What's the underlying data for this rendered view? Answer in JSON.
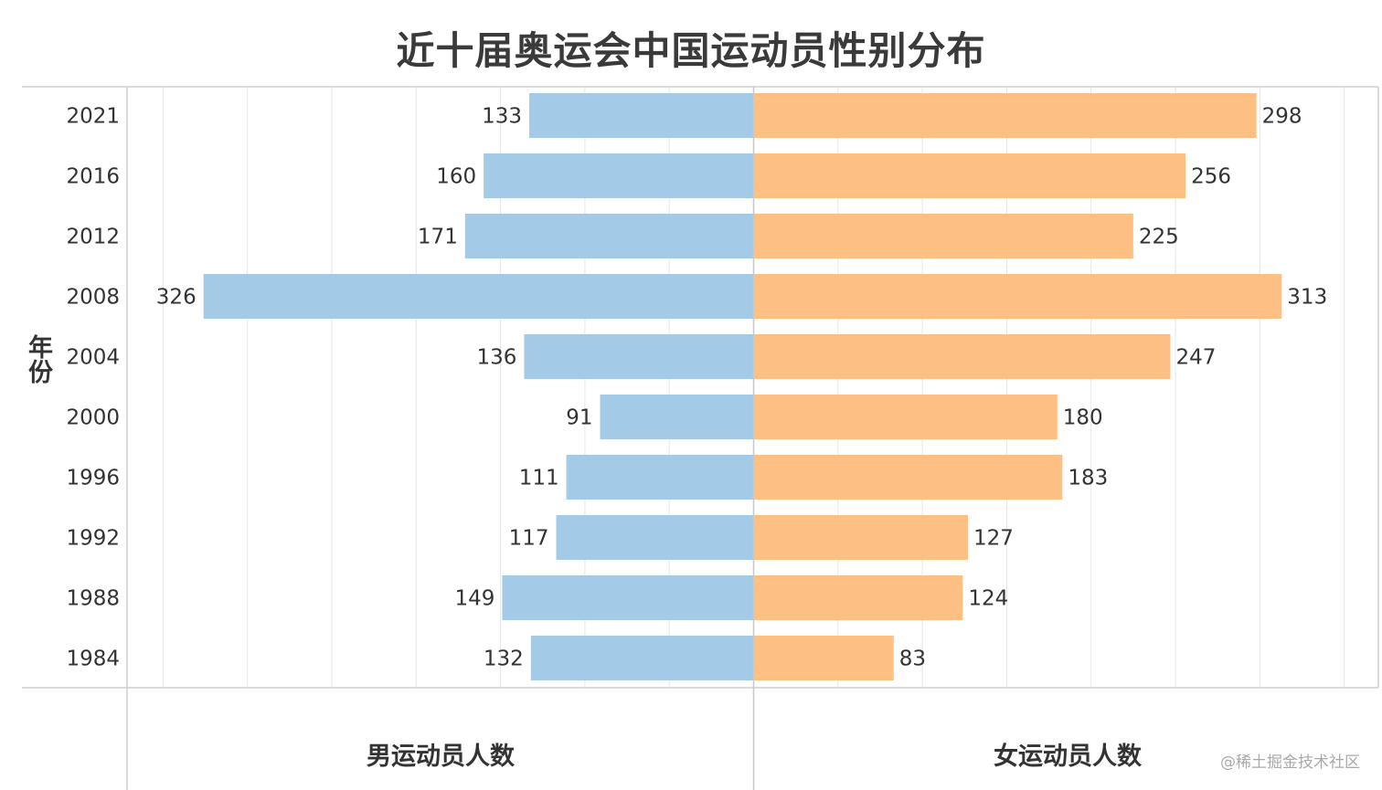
{
  "title": "近十届奥运会中国运动员性别分布",
  "watermark": "@稀土掘金技术社区",
  "chart_data": {
    "type": "bar",
    "orientation": "horizontal-butterfly",
    "title": "近十届奥运会中国运动员性别分布",
    "ylabel": "年份",
    "categories": [
      "2021",
      "2016",
      "2012",
      "2008",
      "2004",
      "2000",
      "1996",
      "1992",
      "1988",
      "1984"
    ],
    "series": [
      {
        "name": "男运动员人数",
        "side": "left",
        "color": "#a3cbe8",
        "values": [
          133,
          160,
          171,
          326,
          136,
          91,
          111,
          117,
          149,
          132
        ]
      },
      {
        "name": "女运动员人数",
        "side": "right",
        "color": "#fdbf82",
        "values": [
          298,
          256,
          225,
          313,
          247,
          180,
          183,
          127,
          124,
          83
        ]
      }
    ],
    "grid": true
  }
}
